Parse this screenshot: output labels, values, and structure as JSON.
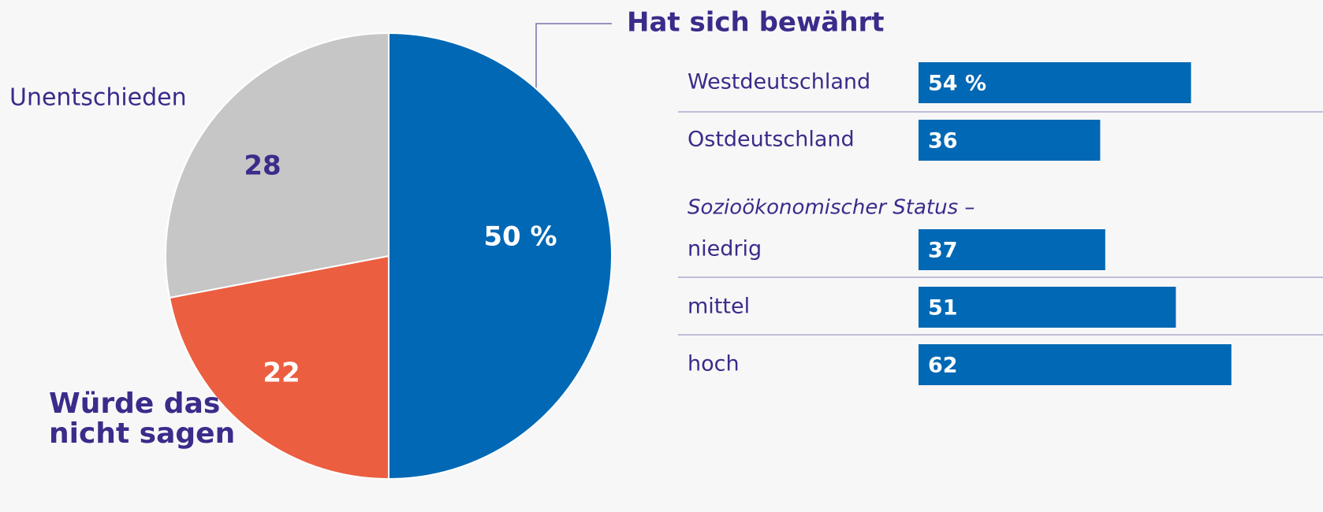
{
  "chart_data": [
    {
      "type": "pie",
      "categories": [
        "Hat sich bewährt",
        "Würde das nicht sagen",
        "Unentschieden"
      ],
      "values": [
        50,
        22,
        28
      ],
      "value_labels": [
        "50 %",
        "22",
        "28"
      ],
      "colors": [
        "#0068b4",
        "#ec5e40",
        "#c6c6c6"
      ]
    },
    {
      "type": "bar",
      "categories": [
        "Westdeutschland",
        "Ostdeutschland",
        "niedrig",
        "mittel",
        "hoch"
      ],
      "values": [
        54,
        36,
        37,
        51,
        62
      ],
      "value_labels": [
        "54 %",
        "36",
        "37",
        "51",
        "62"
      ],
      "group_label": "Sozioökonomischer Status –",
      "color": "#0068b4"
    }
  ]
}
